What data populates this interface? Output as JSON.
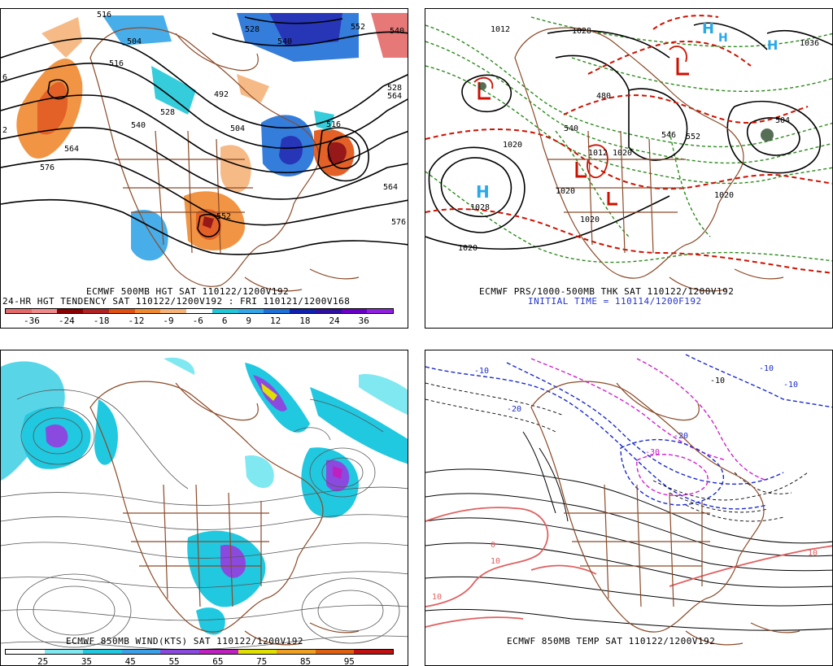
{
  "panels": {
    "p1": {
      "caption1": "ECMWF 500MB HGT SAT 110122/1200V192",
      "caption2": "24-HR HGT TENDENCY SAT 110122/1200V192 : FRI 110121/1200V168",
      "labels": [
        "516",
        "504",
        "516",
        "528",
        "540",
        "552",
        "564",
        "576",
        "564",
        "576",
        "528",
        "540",
        "552",
        "504",
        "492",
        "516",
        "528",
        "540",
        "564",
        "6",
        "2"
      ],
      "legend_ticks": [
        "-36",
        "-24",
        "-18",
        "-12",
        "-9",
        "-6",
        "6",
        "9",
        "12",
        "18",
        "24",
        "36"
      ],
      "legend_colors": [
        "#e46a6a",
        "#f08a8a",
        "#8b0000",
        "#b22222",
        "#e05010",
        "#f08a30",
        "#f6b37a",
        "#ffffff",
        "#20c8d8",
        "#35a6e8",
        "#1f6fd8",
        "#1020b0",
        "#3010a0",
        "#6a00c8",
        "#9020e0"
      ]
    },
    "p2": {
      "caption1": "ECMWF PRS/1000-500MB THK SAT 110122/1200V192",
      "caption2": "INITIAL TIME = 110114/1200F192",
      "high_label": "H",
      "high_value": "1028",
      "labels": [
        "1020",
        "1020",
        "1028",
        "1020",
        "1020",
        "1020",
        "1020",
        "1012",
        "1012",
        "1036",
        "480",
        "540",
        "546",
        "552",
        "1028",
        "504"
      ]
    },
    "p3": {
      "caption1": "ECMWF 850MB WIND(KTS) SAT 110122/1200V192",
      "legend_ticks": [
        "25",
        "35",
        "45",
        "55",
        "65",
        "75",
        "85",
        "95"
      ],
      "legend_colors": [
        "#ffffff",
        "#7fe8f0",
        "#20c8e0",
        "#3aa0e8",
        "#8a4ae0",
        "#c020c0",
        "#e0e000",
        "#f0a020",
        "#e06010",
        "#c01010"
      ]
    },
    "p4": {
      "caption1": "ECMWF 850MB TEMP SAT 110122/1200V192",
      "labels": [
        "-10",
        "-20",
        "-30",
        "-20",
        "-10",
        "-10",
        "0",
        "10",
        "10",
        "-10",
        "10"
      ]
    }
  },
  "colors": {
    "coast": "#8b4a28",
    "contour": "#000000",
    "thickness": "#cc1100",
    "precip": "#2a8a1a",
    "cold_dash": "#1a2ad0",
    "warm": "#e06060",
    "magenta": "#d020d0"
  }
}
